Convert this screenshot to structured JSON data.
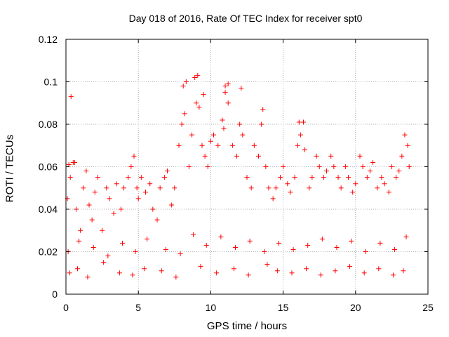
{
  "chart_data": {
    "type": "scatter",
    "title": "Day 018 of 2016, Rate Of TEC Index for receiver spt0",
    "xlabel": "GPS time / hours",
    "ylabel": "ROTI / TECUs",
    "xlim": [
      0,
      25
    ],
    "ylim": [
      0,
      0.12
    ],
    "xticks": [
      0,
      5,
      10,
      15,
      20,
      25
    ],
    "xtick_labels": [
      "0",
      "5",
      "10",
      "15",
      "20",
      "25"
    ],
    "yticks": [
      0,
      0.02,
      0.04,
      0.06,
      0.08,
      0.1,
      0.12
    ],
    "ytick_labels": [
      "0",
      "0.02",
      "0.04",
      "0.06",
      "0.08",
      "0.1",
      "0.12"
    ],
    "grid": true,
    "marker": "plus",
    "color": "#ff0000",
    "series": [
      {
        "name": "spt0",
        "x": [
          0.1,
          0.3,
          0.5,
          0.7,
          1.0,
          1.2,
          1.4,
          1.6,
          1.8,
          2.0,
          2.2,
          2.5,
          2.8,
          3.0,
          3.3,
          3.5,
          3.8,
          4.0,
          4.3,
          4.5,
          4.7,
          4.9,
          5.0,
          5.2,
          5.5,
          5.8,
          6.0,
          6.3,
          6.5,
          6.8,
          7.0,
          7.3,
          7.5,
          7.8,
          8.0,
          8.2,
          8.5,
          8.7,
          9.0,
          9.2,
          9.4,
          9.6,
          9.8,
          10.0,
          10.2,
          10.5,
          10.8,
          11.0,
          11.2,
          11.5,
          11.8,
          12.0,
          12.2,
          12.5,
          12.8,
          13.0,
          13.3,
          13.5,
          13.8,
          14.0,
          14.3,
          14.5,
          14.8,
          15.0,
          15.3,
          15.5,
          15.8,
          16.0,
          16.2,
          16.5,
          16.8,
          17.0,
          17.3,
          17.5,
          17.8,
          18.0,
          18.3,
          18.5,
          18.8,
          19.0,
          19.3,
          19.5,
          19.8,
          20.0,
          20.3,
          20.5,
          20.8,
          21.0,
          21.2,
          21.5,
          21.8,
          22.0,
          22.3,
          22.5,
          22.8,
          23.0,
          23.2,
          23.4,
          23.6,
          23.7,
          0.35,
          0.2,
          0.6,
          8.1,
          8.3,
          8.9,
          9.1,
          9.5,
          10.9,
          11.0,
          11.2,
          12.1,
          13.6,
          16.1,
          16.4,
          0.25,
          0.8,
          1.5,
          2.6,
          3.7,
          4.6,
          5.4,
          6.6,
          7.6,
          9.3,
          10.4,
          11.6,
          12.6,
          13.9,
          14.6,
          15.6,
          16.6,
          17.6,
          18.6,
          19.6,
          20.6,
          21.6,
          22.6,
          23.3,
          0.15,
          0.9,
          1.9,
          2.9,
          3.9,
          4.8,
          5.6,
          6.9,
          7.9,
          8.8,
          9.7,
          10.7,
          11.7,
          12.7,
          13.7,
          14.7,
          15.7,
          16.7,
          17.7,
          18.7,
          19.7,
          20.7,
          21.7,
          22.7,
          23.5
        ],
        "y": [
          0.045,
          0.055,
          0.062,
          0.04,
          0.03,
          0.05,
          0.058,
          0.042,
          0.035,
          0.048,
          0.055,
          0.03,
          0.05,
          0.045,
          0.038,
          0.052,
          0.04,
          0.05,
          0.055,
          0.06,
          0.065,
          0.05,
          0.045,
          0.055,
          0.048,
          0.052,
          0.04,
          0.035,
          0.05,
          0.055,
          0.058,
          0.042,
          0.05,
          0.07,
          0.08,
          0.085,
          0.06,
          0.075,
          0.09,
          0.088,
          0.07,
          0.065,
          0.06,
          0.072,
          0.075,
          0.07,
          0.082,
          0.095,
          0.09,
          0.07,
          0.065,
          0.08,
          0.075,
          0.055,
          0.05,
          0.07,
          0.065,
          0.08,
          0.06,
          0.05,
          0.045,
          0.05,
          0.055,
          0.06,
          0.052,
          0.048,
          0.055,
          0.07,
          0.075,
          0.068,
          0.05,
          0.055,
          0.065,
          0.06,
          0.055,
          0.058,
          0.065,
          0.06,
          0.055,
          0.05,
          0.06,
          0.055,
          0.048,
          0.052,
          0.065,
          0.06,
          0.055,
          0.058,
          0.062,
          0.05,
          0.055,
          0.052,
          0.048,
          0.06,
          0.055,
          0.058,
          0.065,
          0.075,
          0.07,
          0.06,
          0.093,
          0.061,
          0.062,
          0.098,
          0.1,
          0.102,
          0.103,
          0.094,
          0.078,
          0.098,
          0.099,
          0.097,
          0.087,
          0.081,
          0.081,
          0.01,
          0.012,
          0.008,
          0.015,
          0.01,
          0.009,
          0.012,
          0.011,
          0.008,
          0.013,
          0.01,
          0.012,
          0.009,
          0.014,
          0.011,
          0.01,
          0.012,
          0.009,
          0.011,
          0.013,
          0.01,
          0.012,
          0.009,
          0.011,
          0.02,
          0.025,
          0.022,
          0.018,
          0.024,
          0.02,
          0.026,
          0.021,
          0.019,
          0.028,
          0.023,
          0.027,
          0.022,
          0.025,
          0.02,
          0.024,
          0.021,
          0.023,
          0.026,
          0.022,
          0.025,
          0.02,
          0.024,
          0.021,
          0.027
        ]
      }
    ]
  }
}
